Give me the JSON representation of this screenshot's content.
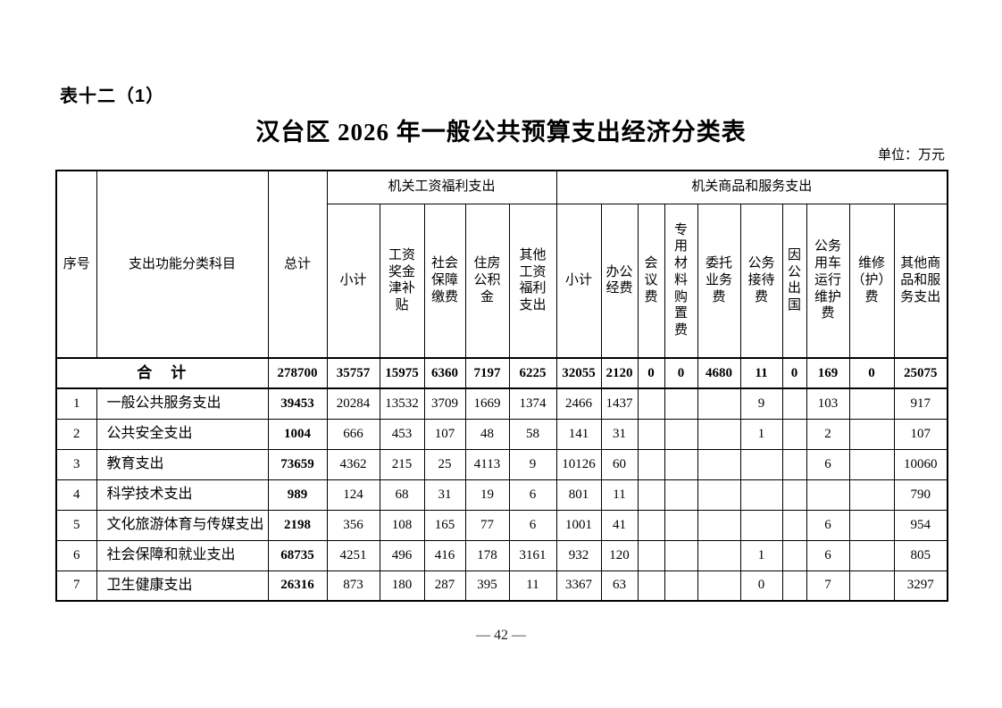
{
  "page": {
    "table_label": "表十二（1）",
    "title": "汉台区 2026 年一般公共预算支出经济分类表",
    "unit_note": "单位：万元",
    "page_number": "— 42 —"
  },
  "table": {
    "headers": {
      "col_serial": "序号",
      "col_category": "支出功能分类科目",
      "col_total": "总计",
      "group_wage": "机关工资福利支出",
      "group_goods": "机关商品和服务支出",
      "wage_cols": [
        "小计",
        "工资\n奖金\n津补\n贴",
        "社会\n保障\n缴费",
        "住房\n公积\n金",
        "其他\n工资\n福利\n支出"
      ],
      "goods_cols": [
        "小计",
        "办公\n经费",
        "会\n议\n费",
        "专\n用\n材\n料\n购\n置\n费",
        "委托\n业务\n费",
        "公务\n接待\n费",
        "因\n公\n出\n国",
        "公务\n用车\n运行\n维护\n费",
        "维修\n（护）\n费",
        "其他商\n品和服\n务支出"
      ]
    },
    "total_row": {
      "label": "合　计",
      "values": [
        "278700",
        "35757",
        "15975",
        "6360",
        "7197",
        "6225",
        "32055",
        "2120",
        "0",
        "0",
        "4680",
        "11",
        "0",
        "169",
        "0",
        "25075"
      ]
    },
    "rows": [
      {
        "no": "1",
        "category": "一般公共服务支出",
        "values": [
          "39453",
          "20284",
          "13532",
          "3709",
          "1669",
          "1374",
          "2466",
          "1437",
          "",
          "",
          "",
          "9",
          "",
          "103",
          "",
          "917"
        ]
      },
      {
        "no": "2",
        "category": "公共安全支出",
        "values": [
          "1004",
          "666",
          "453",
          "107",
          "48",
          "58",
          "141",
          "31",
          "",
          "",
          "",
          "1",
          "",
          "2",
          "",
          "107"
        ]
      },
      {
        "no": "3",
        "category": "教育支出",
        "values": [
          "73659",
          "4362",
          "215",
          "25",
          "4113",
          "9",
          "10126",
          "60",
          "",
          "",
          "",
          "",
          "",
          "6",
          "",
          "10060"
        ]
      },
      {
        "no": "4",
        "category": "科学技术支出",
        "values": [
          "989",
          "124",
          "68",
          "31",
          "19",
          "6",
          "801",
          "11",
          "",
          "",
          "",
          "",
          "",
          "",
          "",
          "790"
        ]
      },
      {
        "no": "5",
        "category": "文化旅游体育与传媒支出",
        "values": [
          "2198",
          "356",
          "108",
          "165",
          "77",
          "6",
          "1001",
          "41",
          "",
          "",
          "",
          "",
          "",
          "6",
          "",
          "954"
        ]
      },
      {
        "no": "6",
        "category": "社会保障和就业支出",
        "values": [
          "68735",
          "4251",
          "496",
          "416",
          "178",
          "3161",
          "932",
          "120",
          "",
          "",
          "",
          "1",
          "",
          "6",
          "",
          "805"
        ]
      },
      {
        "no": "7",
        "category": "卫生健康支出",
        "values": [
          "26316",
          "873",
          "180",
          "287",
          "395",
          "11",
          "3367",
          "63",
          "",
          "",
          "",
          "0",
          "",
          "7",
          "",
          "3297"
        ]
      }
    ]
  }
}
